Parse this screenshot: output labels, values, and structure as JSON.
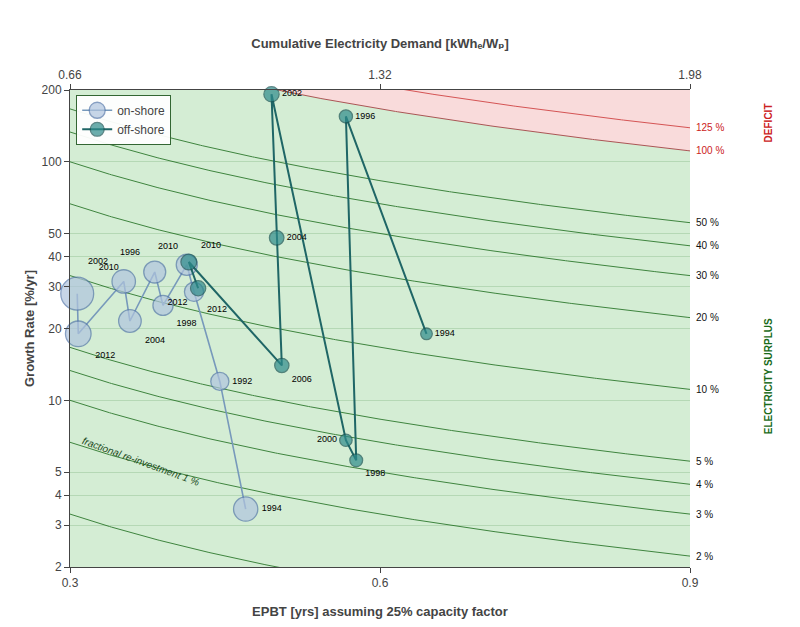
{
  "chart_data": {
    "type": "scatter",
    "xlabel": "EPBT [yrs] assuming 25% capacity factor",
    "ylabel": "Growth Rate [%/yr]",
    "x2label": "Cumulative Electricity Demand [kWhₑ/Wₚ]",
    "xlim": [
      0.3,
      0.9
    ],
    "xticks": [
      0.3,
      0.6,
      0.9
    ],
    "x2lim": [
      0.66,
      1.98
    ],
    "x2ticks": [
      0.66,
      1.32,
      1.98
    ],
    "ylim": [
      2,
      200
    ],
    "yticks": [
      2,
      3,
      4,
      5,
      10,
      20,
      30,
      40,
      50,
      100,
      200
    ],
    "log": "y",
    "grid": "y",
    "legend": "upper left",
    "series": [
      {
        "name": "on-shore",
        "type": "line",
        "marker": "circle",
        "color": "#b0c4de",
        "edge_color": "#5577aa",
        "line_color": "#7799bb",
        "x": [
          0.307,
          0.308,
          0.352,
          0.358,
          0.382,
          0.39,
          0.413,
          0.42,
          0.445,
          0.47
        ],
        "values": [
          28,
          19,
          31.5,
          21.5,
          34.5,
          25,
          37,
          28.5,
          12,
          3.5
        ],
        "sizes": [
          560,
          340,
          285,
          265,
          250,
          210,
          230,
          190,
          170,
          305
        ],
        "labels": [
          "2010",
          "2012",
          "2002",
          "2004",
          "1996",
          "1998",
          "2010",
          "2012",
          "1992",
          "1994"
        ]
      },
      {
        "name": "off-shore",
        "type": "line",
        "marker": "circle",
        "color": "#2e8b8b",
        "edge_color": "#1a5555",
        "line_color": "#1f6666",
        "x": [
          0.645,
          0.567,
          0.577,
          0.567,
          0.495,
          0.5,
          0.505,
          0.415,
          0.424
        ],
        "values": [
          19,
          155,
          5.6,
          6.8,
          192,
          48,
          14,
          38,
          29.5
        ],
        "sizes": [
          70,
          90,
          85,
          80,
          120,
          110,
          105,
          130,
          120
        ],
        "labels": [
          "1994",
          "1996",
          "1998",
          "2000",
          "2002",
          "2004",
          "2006",
          "2010",
          "2012"
        ]
      }
    ],
    "iso_lines": [
      {
        "value": 1,
        "color": "#1a6b1a"
      },
      {
        "value": 2,
        "label": "2 %",
        "color": "#1a6b1a",
        "label_color": "#111111"
      },
      {
        "value": 3,
        "label": "3 %",
        "color": "#1a6b1a",
        "label_color": "#111111"
      },
      {
        "value": 4,
        "label": "4 %",
        "color": "#1a6b1a",
        "label_color": "#111111"
      },
      {
        "value": 5,
        "label": "5 %",
        "color": "#1a6b1a",
        "label_color": "#111111"
      },
      {
        "value": 10,
        "label": "10 %",
        "color": "#1a6b1a",
        "label_color": "#111111"
      },
      {
        "value": 20,
        "label": "20 %",
        "color": "#1a6b1a",
        "label_color": "#111111"
      },
      {
        "value": 30,
        "label": "30 %",
        "color": "#1a6b1a",
        "label_color": "#111111"
      },
      {
        "value": 40,
        "label": "40 %",
        "color": "#1a6b1a",
        "label_color": "#111111"
      },
      {
        "value": 50,
        "label": "50 %",
        "color": "#1a6b1a",
        "label_color": "#111111"
      },
      {
        "value": 100,
        "label": "100 %",
        "color": "#993333",
        "label_color": "#cc2222"
      },
      {
        "value": 125,
        "label": "125 %",
        "color": "#cc3333",
        "label_color": "#cc2222"
      }
    ],
    "zones": [
      {
        "name": "ELECTRICITY SURPLUS",
        "below": 100,
        "color": "#b9e2b9",
        "label_color": "#1a6b1a"
      },
      {
        "name": "DEFICIT",
        "above": 100,
        "color": "#f6c4c4",
        "label_color": "#cc2222"
      }
    ],
    "annotations": [
      {
        "text": "fractional re-investment 1 %",
        "x": 0.308,
        "y": 4.2,
        "color": "#1a4a1a"
      }
    ]
  }
}
